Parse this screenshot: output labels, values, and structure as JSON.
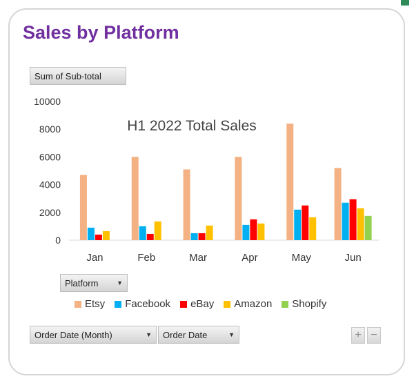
{
  "title": "Sales by Platform",
  "value_field_label": "Sum of Sub-total",
  "legend_field_label": "Platform",
  "axis_field_labels": [
    "Order Date (Month)",
    "Order Date"
  ],
  "zoom_buttons": [
    "+",
    "−"
  ],
  "icons": {
    "dropdown": "triangle-down-icon"
  },
  "colors": {
    "title": "#7030a0",
    "Etsy": "#f4b183",
    "Facebook": "#00b0f0",
    "eBay": "#ff0000",
    "Amazon": "#ffc000",
    "Shopify": "#92d050"
  },
  "chart_data": {
    "type": "bar",
    "title": "H1 2022 Total Sales",
    "categories": [
      "Jan",
      "Feb",
      "Mar",
      "Apr",
      "May",
      "Jun"
    ],
    "series": [
      {
        "name": "Etsy",
        "values": [
          4700,
          6000,
          5100,
          6000,
          8400,
          5200
        ]
      },
      {
        "name": "Facebook",
        "values": [
          900,
          1000,
          500,
          1100,
          2200,
          2700
        ]
      },
      {
        "name": "eBay",
        "values": [
          400,
          450,
          500,
          1500,
          2500,
          2950
        ]
      },
      {
        "name": "Amazon",
        "values": [
          650,
          1350,
          1050,
          1200,
          1650,
          2300
        ]
      },
      {
        "name": "Shopify",
        "values": [
          0,
          0,
          0,
          0,
          0,
          1750
        ]
      }
    ],
    "ylim": [
      0,
      10000
    ],
    "yticks": [
      "0",
      "2000",
      "4000",
      "6000",
      "8000",
      "10000"
    ],
    "grid": false,
    "legend_position": "bottom"
  }
}
